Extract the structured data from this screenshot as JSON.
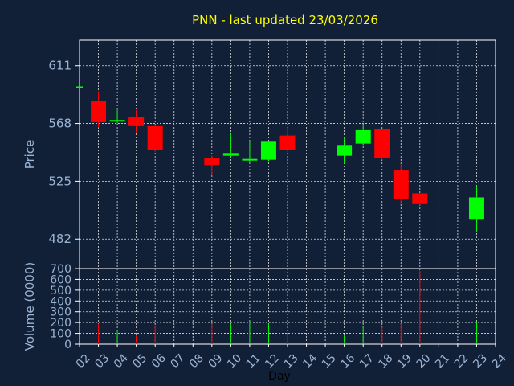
{
  "colors": {
    "background": "#112036",
    "title": "#ffff00",
    "axis_text": "#9cb4d4",
    "up": "#00ff00",
    "down": "#ff0000",
    "grid": "#ffffff"
  },
  "chart_data": [
    {
      "type": "candlestick",
      "title": "PNN - last updated 23/03/2026",
      "ylabel": "Price",
      "xlabel": "Day",
      "ylim": [
        460,
        630
      ],
      "yticks": [
        482,
        525,
        568,
        611
      ],
      "grid": true,
      "x": [
        "02",
        "03",
        "04",
        "05",
        "06",
        "07",
        "08",
        "09",
        "10",
        "11",
        "12",
        "13",
        "14",
        "15",
        "16",
        "17",
        "18",
        "19",
        "20",
        "21",
        "22",
        "23",
        "24"
      ],
      "candles": [
        {
          "day": "02",
          "open": 595,
          "high": 595,
          "low": 595,
          "close": 595
        },
        {
          "day": "03",
          "open": 585,
          "high": 592,
          "low": 565,
          "close": 569
        },
        {
          "day": "04",
          "open": 569,
          "high": 579,
          "low": 568,
          "close": 570
        },
        {
          "day": "05",
          "open": 573,
          "high": 578,
          "low": 561,
          "close": 566
        },
        {
          "day": "06",
          "open": 566,
          "high": 567,
          "low": 547,
          "close": 548
        },
        {
          "day": "09",
          "open": 542,
          "high": 544,
          "low": 530,
          "close": 537
        },
        {
          "day": "10",
          "open": 544,
          "high": 560,
          "low": 543,
          "close": 546
        },
        {
          "day": "11",
          "open": 540,
          "high": 555,
          "low": 539,
          "close": 541
        },
        {
          "day": "12",
          "open": 541,
          "high": 555,
          "low": 540,
          "close": 555
        },
        {
          "day": "13",
          "open": 559,
          "high": 565,
          "low": 547,
          "close": 548
        },
        {
          "day": "16",
          "open": 544,
          "high": 558,
          "low": 538,
          "close": 552
        },
        {
          "day": "17",
          "open": 553,
          "high": 567,
          "low": 552,
          "close": 563
        },
        {
          "day": "18",
          "open": 564,
          "high": 564,
          "low": 541,
          "close": 542
        },
        {
          "day": "19",
          "open": 533,
          "high": 538,
          "low": 508,
          "close": 512
        },
        {
          "day": "20",
          "open": 516,
          "high": 516,
          "low": 507,
          "close": 508
        },
        {
          "day": "23",
          "open": 497,
          "high": 522,
          "low": 487,
          "close": 513
        }
      ]
    },
    {
      "type": "bar",
      "ylabel": "Volume (0000)",
      "xlabel": "Day",
      "ylim": [
        0,
        700
      ],
      "yticks": [
        0,
        100,
        200,
        300,
        400,
        500,
        600,
        700
      ],
      "bars": [
        {
          "day": "03",
          "value": 190,
          "color": "down"
        },
        {
          "day": "04",
          "value": 130,
          "color": "up"
        },
        {
          "day": "05",
          "value": 90,
          "color": "down"
        },
        {
          "day": "06",
          "value": 165,
          "color": "down"
        },
        {
          "day": "09",
          "value": 190,
          "color": "down"
        },
        {
          "day": "10",
          "value": 190,
          "color": "up"
        },
        {
          "day": "11",
          "value": 200,
          "color": "up"
        },
        {
          "day": "12",
          "value": 190,
          "color": "up"
        },
        {
          "day": "13",
          "value": 95,
          "color": "down"
        },
        {
          "day": "16",
          "value": 90,
          "color": "up"
        },
        {
          "day": "17",
          "value": 165,
          "color": "up"
        },
        {
          "day": "18",
          "value": 160,
          "color": "down"
        },
        {
          "day": "19",
          "value": 190,
          "color": "down"
        },
        {
          "day": "20",
          "value": 680,
          "color": "down"
        },
        {
          "day": "23",
          "value": 210,
          "color": "up"
        }
      ]
    }
  ]
}
